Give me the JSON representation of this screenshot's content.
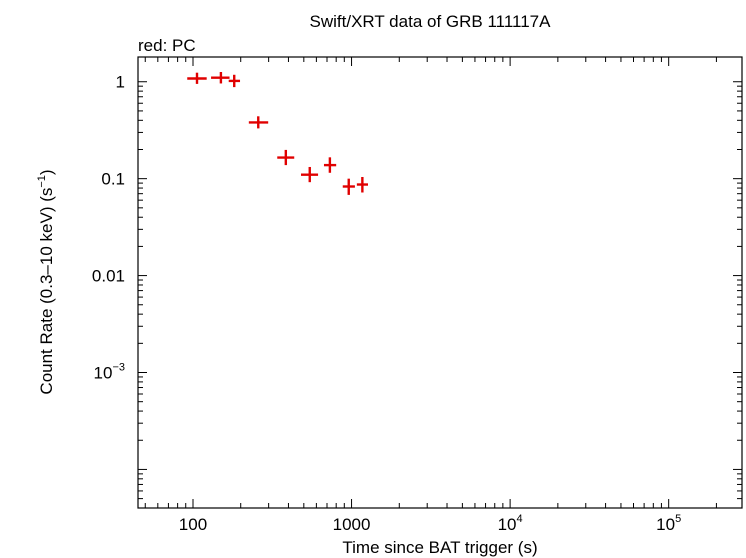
{
  "chart_data": {
    "type": "scatter",
    "title": "Swift/XRT data of GRB 111117A",
    "subtitle": "red: PC",
    "xlabel": "Time since BAT trigger (s)",
    "ylabel": "Count Rate (0.3–10 keV) (s",
    "ylabel_sup": "−1",
    "ylabel_end": ")",
    "x_scale": "log",
    "y_scale": "log",
    "xlim": [
      45,
      290000
    ],
    "ylim": [
      4e-05,
      1.8
    ],
    "x_ticks": [
      {
        "value": 100,
        "base": "100",
        "sup": ""
      },
      {
        "value": 1000,
        "base": "1000",
        "sup": ""
      },
      {
        "value": 10000,
        "base": "10",
        "sup": "4"
      },
      {
        "value": 100000,
        "base": "10",
        "sup": "5"
      }
    ],
    "y_ticks": [
      {
        "value": 1,
        "base": "1",
        "sup": ""
      },
      {
        "value": 0.1,
        "base": "0.1",
        "sup": ""
      },
      {
        "value": 0.01,
        "base": "0.01",
        "sup": ""
      },
      {
        "value": 0.001,
        "base": "10",
        "sup": "−3"
      }
    ],
    "series": [
      {
        "color": "#e00000",
        "points": [
          {
            "x": 106,
            "x_lo": 92,
            "x_hi": 122,
            "y": 1.08,
            "y_lo": 0.95,
            "y_hi": 1.24
          },
          {
            "x": 150,
            "x_lo": 130,
            "x_hi": 170,
            "y": 1.1,
            "y_lo": 0.96,
            "y_hi": 1.26
          },
          {
            "x": 182,
            "x_lo": 168,
            "x_hi": 198,
            "y": 1.02,
            "y_lo": 0.88,
            "y_hi": 1.18
          },
          {
            "x": 258,
            "x_lo": 225,
            "x_hi": 298,
            "y": 0.38,
            "y_lo": 0.33,
            "y_hi": 0.44
          },
          {
            "x": 385,
            "x_lo": 340,
            "x_hi": 435,
            "y": 0.165,
            "y_lo": 0.138,
            "y_hi": 0.198
          },
          {
            "x": 545,
            "x_lo": 480,
            "x_hi": 615,
            "y": 0.11,
            "y_lo": 0.092,
            "y_hi": 0.132
          },
          {
            "x": 730,
            "x_lo": 670,
            "x_hi": 800,
            "y": 0.138,
            "y_lo": 0.115,
            "y_hi": 0.166
          },
          {
            "x": 960,
            "x_lo": 880,
            "x_hi": 1050,
            "y": 0.083,
            "y_lo": 0.068,
            "y_hi": 0.1
          },
          {
            "x": 1170,
            "x_lo": 1080,
            "x_hi": 1270,
            "y": 0.087,
            "y_lo": 0.072,
            "y_hi": 0.104
          }
        ]
      }
    ]
  }
}
